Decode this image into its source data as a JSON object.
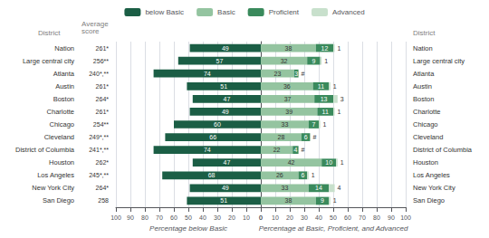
{
  "chart_data": [
    {
      "type": "bar",
      "orientation": "horizontal",
      "legend": "top",
      "grid": true,
      "data_labels": true,
      "ylabel": "District",
      "categories": [
        "Nation",
        "Large central city",
        "Atlanta",
        "Austin",
        "Boston",
        "Charlotte",
        "Chicago",
        "Cleveland",
        "District of Columbia",
        "Houston",
        "Los Angeles",
        "New York City",
        "San Diego"
      ],
      "score_label": "Average\nscore",
      "scores": [
        "261*",
        "256**",
        "240*,**",
        "261*",
        "264*",
        "261*",
        "254**",
        "249*,**",
        "241*,**",
        "262*",
        "245*,**",
        "264*",
        "258"
      ],
      "series": [
        {
          "name": "below Basic",
          "color": "#1b5e45",
          "values": [
            49,
            57,
            74,
            51,
            47,
            49,
            60,
            66,
            74,
            47,
            68,
            49,
            51
          ]
        }
      ],
      "xlabel": "Percentage below Basic",
      "xlim": [
        100,
        0
      ],
      "xticks": [
        0,
        10,
        20,
        30,
        40,
        50,
        60,
        70,
        80,
        90,
        100
      ]
    },
    {
      "type": "bar",
      "orientation": "horizontal",
      "stacked": true,
      "legend": "top",
      "grid": true,
      "data_labels": true,
      "ylabel": "District",
      "categories": [
        "Nation",
        "Large central city",
        "Atlanta",
        "Austin",
        "Boston",
        "Charlotte",
        "Chicago",
        "Cleveland",
        "District of Columbia",
        "Houston",
        "Los Angeles",
        "New York City",
        "San Diego"
      ],
      "series": [
        {
          "name": "Basic",
          "color": "#94c4a0",
          "values": [
            38,
            32,
            23,
            36,
            37,
            39,
            33,
            28,
            22,
            42,
            26,
            33,
            38
          ]
        },
        {
          "name": "Proficient",
          "color": "#3a8a5c",
          "values": [
            12,
            9,
            3,
            11,
            13,
            11,
            7,
            6,
            4,
            10,
            6,
            14,
            9
          ]
        },
        {
          "name": "Advanced",
          "color": "#c8e0cc",
          "values": [
            1,
            1,
            0,
            1,
            3,
            1,
            1,
            0,
            0,
            1,
            1,
            4,
            1
          ],
          "value_labels": [
            "1",
            "1",
            "#",
            "1",
            "3",
            "1",
            "1",
            "#",
            "#",
            "1",
            "1",
            "4",
            "1"
          ]
        }
      ],
      "xlabel": "Percentage at Basic, Proficient, and Advanced",
      "xlim": [
        0,
        100
      ],
      "xticks": [
        0,
        10,
        20,
        30,
        40,
        50,
        60,
        70,
        80,
        90,
        100
      ]
    }
  ]
}
